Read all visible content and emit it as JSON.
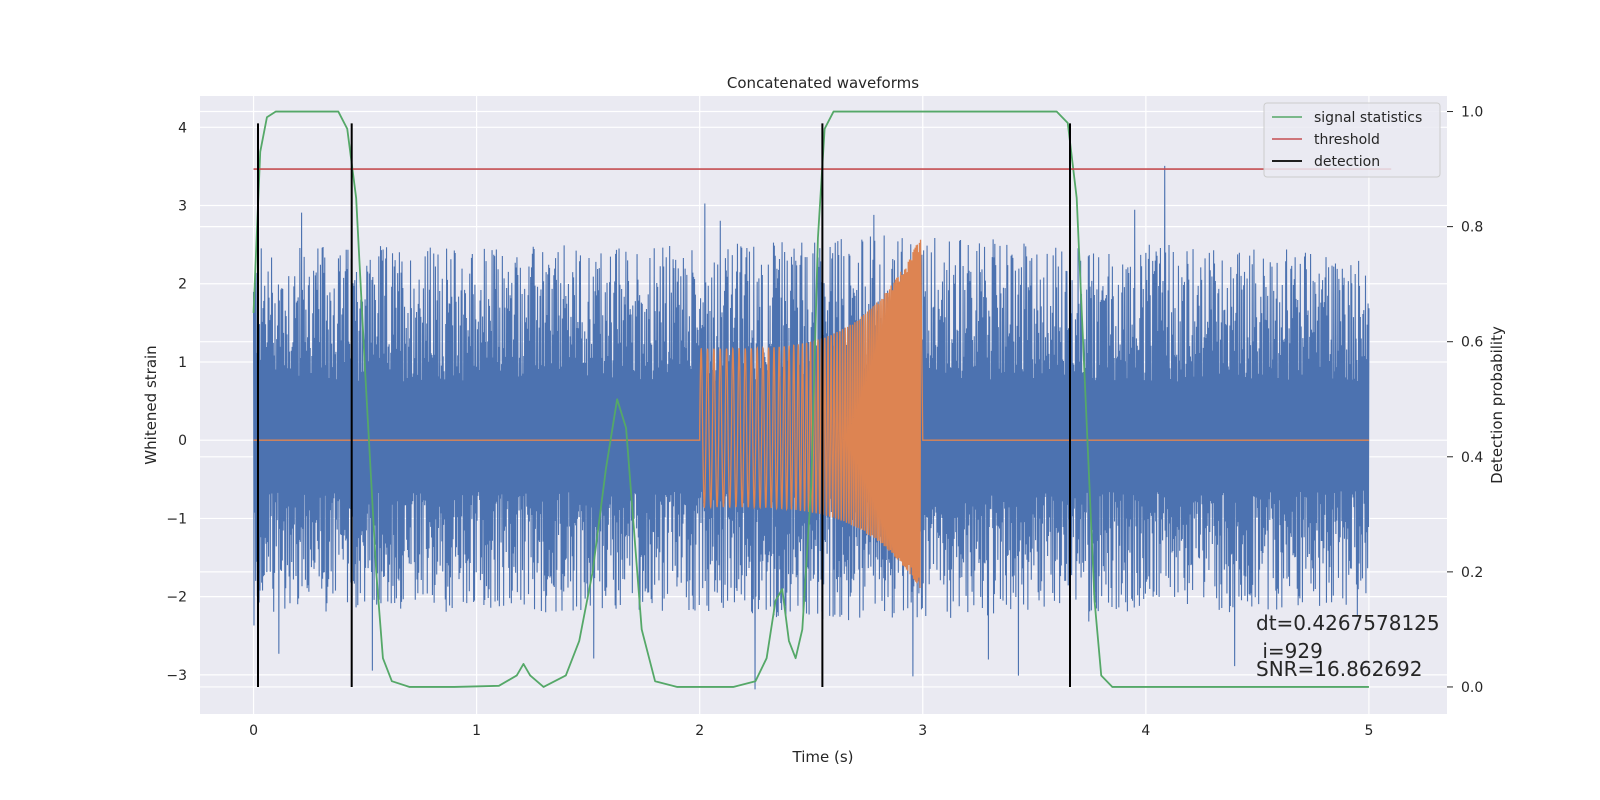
{
  "chart_data": {
    "type": "line",
    "title": "Concatenated waveforms",
    "xlabel": "Time (s)",
    "ylabel": "Whitened strain",
    "ylabel_right": "Detection probability",
    "xlim": [
      -0.24,
      5.35
    ],
    "ylim": [
      -3.5,
      4.4
    ],
    "ylim_right": [
      -0.047,
      1.027
    ],
    "x_ticks": [
      0,
      1,
      2,
      3,
      4,
      5
    ],
    "y_ticks": [
      -3,
      -2,
      -1,
      0,
      1,
      2,
      3,
      4
    ],
    "y_ticks_right": [
      0.0,
      0.2,
      0.4,
      0.6,
      0.8,
      1.0
    ],
    "x_tick_labels": [
      "0",
      "1",
      "2",
      "3",
      "4",
      "5"
    ],
    "y_tick_labels": [
      "−3",
      "−2",
      "−1",
      "0",
      "1",
      "2",
      "3",
      "4"
    ],
    "y_tick_labels_right": [
      "0.0",
      "0.2",
      "0.4",
      "0.6",
      "0.8",
      "1.0"
    ],
    "grid": true,
    "legend_position": "top-right",
    "colors": {
      "noise": "#4c72b0",
      "waveform": "#dd8452",
      "signal_statistics": "#55a868",
      "threshold": "#c44e52",
      "detection": "#000000",
      "background": "#eaeaf2",
      "grid": "#ffffff"
    },
    "series": [
      {
        "name": "signal statistics",
        "axis": "right",
        "x": [
          0,
          0.03,
          0.06,
          0.1,
          0.15,
          0.3,
          0.38,
          0.42,
          0.46,
          0.5,
          0.55,
          0.58,
          0.62,
          0.7,
          0.9,
          1.1,
          1.18,
          1.21,
          1.24,
          1.3,
          1.4,
          1.46,
          1.52,
          1.58,
          1.63,
          1.67,
          1.7,
          1.74,
          1.8,
          1.9,
          2.0,
          2.15,
          2.25,
          2.3,
          2.34,
          2.37,
          2.4,
          2.43,
          2.46,
          2.5,
          2.53,
          2.56,
          2.6,
          2.65,
          2.8,
          3.0,
          3.3,
          3.6,
          3.65,
          3.69,
          3.73,
          3.77,
          3.8,
          3.85,
          4.0,
          4.5,
          5.0
        ],
        "values": [
          0.65,
          0.93,
          0.99,
          1.0,
          1.0,
          1.0,
          1.0,
          0.97,
          0.85,
          0.55,
          0.2,
          0.05,
          0.01,
          0.0,
          0.0,
          0.002,
          0.02,
          0.04,
          0.02,
          0.0,
          0.02,
          0.08,
          0.2,
          0.38,
          0.5,
          0.45,
          0.3,
          0.1,
          0.01,
          0.0,
          0.0,
          0.0,
          0.01,
          0.05,
          0.15,
          0.17,
          0.08,
          0.05,
          0.1,
          0.35,
          0.78,
          0.97,
          1.0,
          1.0,
          1.0,
          1.0,
          1.0,
          1.0,
          0.98,
          0.85,
          0.5,
          0.15,
          0.02,
          0.0,
          0.0,
          0.0,
          0.0
        ]
      },
      {
        "name": "threshold",
        "axis": "right",
        "x": [
          0,
          5.1
        ],
        "values": [
          0.9,
          0.9
        ]
      },
      {
        "name": "detection",
        "axis": "left",
        "x": [
          0.02,
          0.44,
          2.55,
          3.66
        ],
        "values": [
          4.05,
          4.05,
          4.05,
          4.05
        ]
      }
    ],
    "noise_envelope": {
      "x": [
        0,
        0.5,
        1.0,
        1.5,
        2.0,
        2.5,
        3.0,
        3.5,
        4.0,
        4.5,
        5.0
      ],
      "upper": [
        2.5,
        2.5,
        2.5,
        2.5,
        2.5,
        2.6,
        2.7,
        2.5,
        2.5,
        2.5,
        2.4
      ],
      "lower": [
        -2.2,
        -2.2,
        -2.2,
        -2.2,
        -2.2,
        -2.3,
        -2.3,
        -2.2,
        -2.2,
        -2.2,
        -2.1
      ]
    },
    "waveform": {
      "start": 2.0,
      "end": 2.99,
      "peak_pos": 2.6,
      "peak_neg": -1.9
    },
    "annotations": [
      "dt=0.4267578125",
      " i=929",
      "SNR=16.862692"
    ]
  }
}
